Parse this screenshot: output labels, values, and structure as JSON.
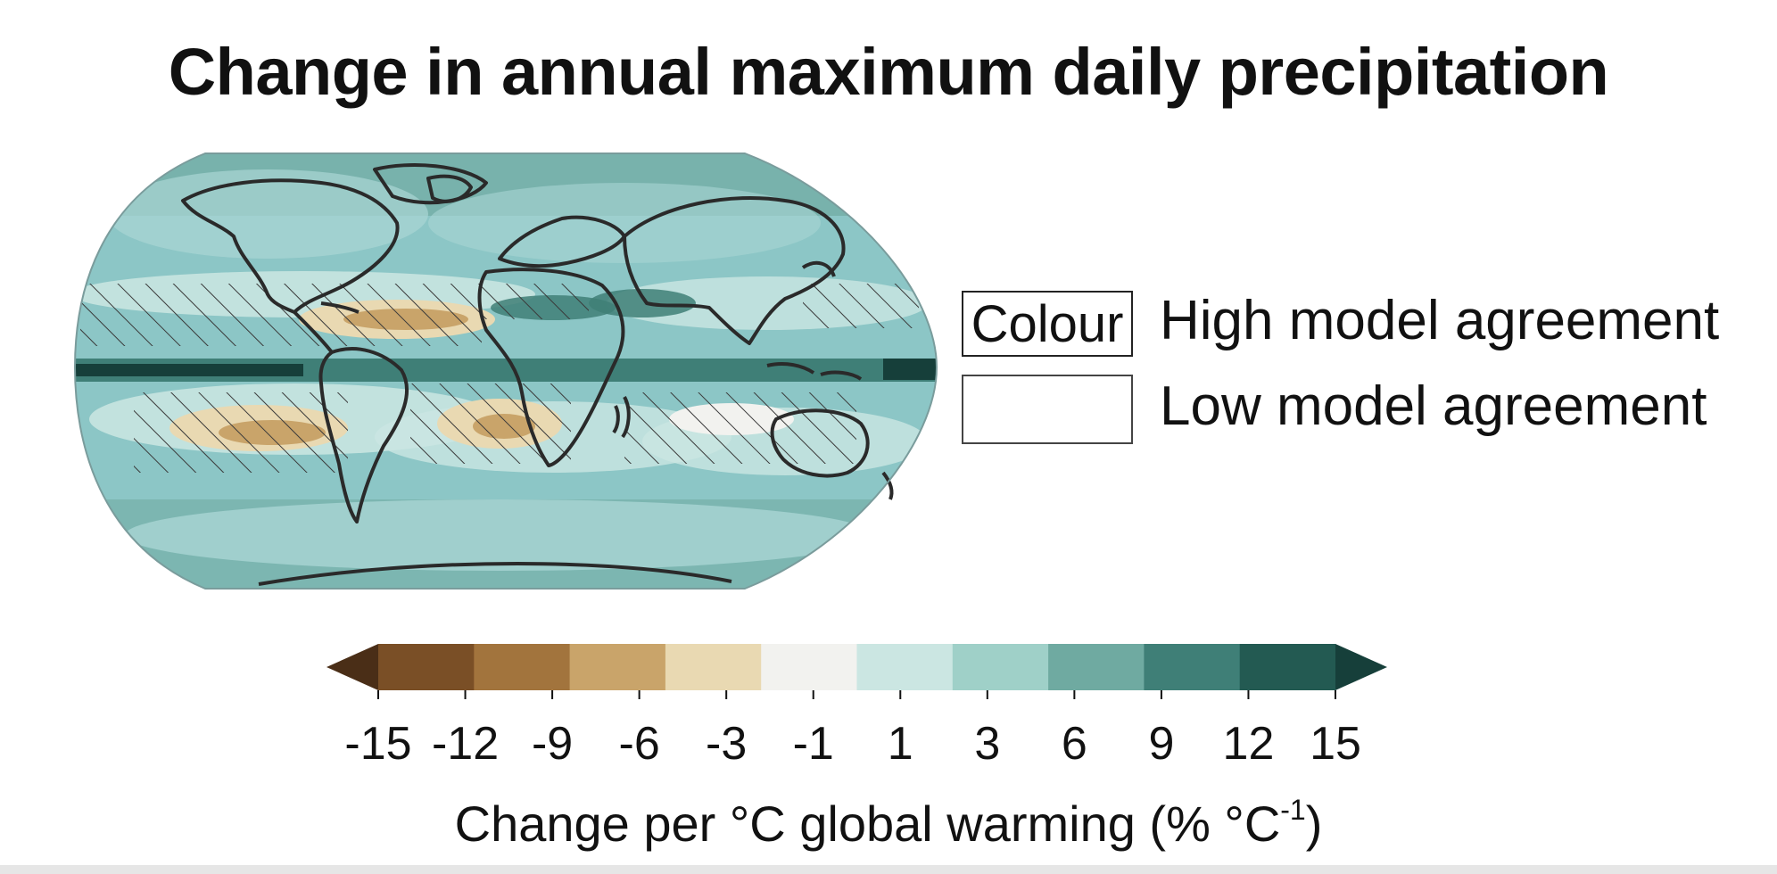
{
  "title": "Change in annual maximum daily precipitation",
  "legend": {
    "colour_box_label": "Colour",
    "high_agreement": "High model agreement",
    "low_agreement": "Low model agreement"
  },
  "colorbar": {
    "ticks": [
      "-15",
      "-12",
      "-9",
      "-6",
      "-3",
      "-1",
      "1",
      "3",
      "6",
      "9",
      "12",
      "15"
    ],
    "colors": [
      "#4a2e17",
      "#7a4f26",
      "#a2743d",
      "#c9a46a",
      "#e9d9b2",
      "#f2f2ef",
      "#cbe6e2",
      "#9fd0c8",
      "#6faaa1",
      "#3f7f77",
      "#235a52",
      "#163f3a"
    ],
    "extend": "both",
    "axis_label": "Change per °C global warming (% °C",
    "axis_label_sup": "-1",
    "axis_label_end": ")"
  },
  "map": {
    "ocean_base_color": "#8cc6c6",
    "coast_color": "#2a2a2a"
  }
}
